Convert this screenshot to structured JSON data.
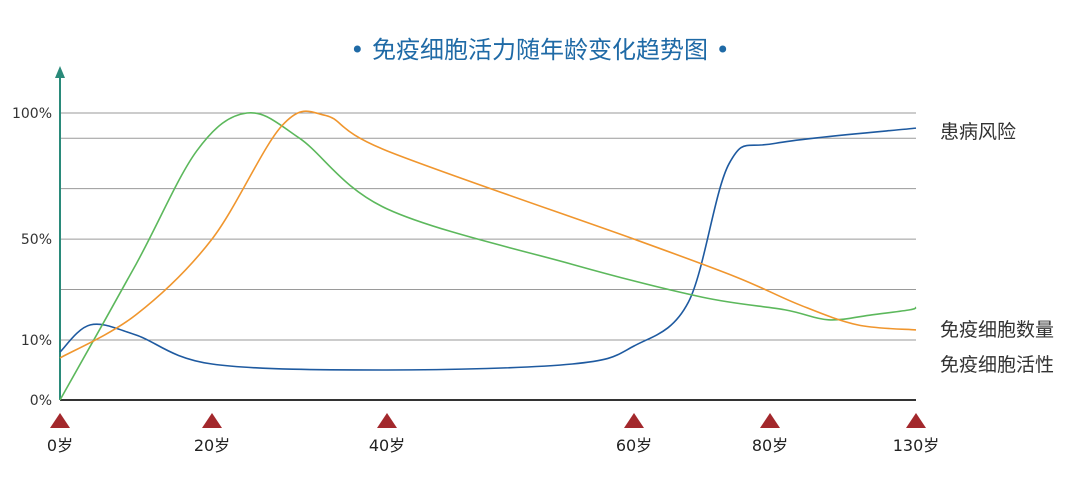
{
  "colors": {
    "title": "#1f6aa6",
    "axis_y": "#2a8a7a",
    "grid": "#9a9a9a",
    "baseline": "#333333",
    "marker": "#a3282c",
    "risk": "#1e5aa0",
    "count": "#5cb85c",
    "activity": "#f0962e"
  },
  "chart_data": {
    "type": "line",
    "title": "• 免疫细胞活力随年龄变化趋势图 •",
    "xlabel": "",
    "ylabel": "",
    "grid": true,
    "legend_position": "right",
    "x_categories": [
      "0岁",
      "20岁",
      "40岁",
      "60岁",
      "80岁",
      "130岁"
    ],
    "y_ticks": [
      {
        "label": "0%",
        "value": 0
      },
      {
        "label": "10%",
        "value": 10
      },
      {
        "label": "50%",
        "value": 50
      },
      {
        "label": "100%",
        "value": 100
      }
    ],
    "gridlines": [
      10,
      30,
      50,
      70,
      90,
      100
    ],
    "series": [
      {
        "name": "患病风险",
        "color_key": "risk",
        "points": [
          [
            0,
            8
          ],
          [
            4,
            16
          ],
          [
            10,
            12
          ],
          [
            20,
            6
          ],
          [
            40,
            5
          ],
          [
            55,
            6
          ],
          [
            60,
            9
          ],
          [
            68,
            25
          ],
          [
            74,
            80
          ],
          [
            82,
            88
          ],
          [
            130,
            94
          ]
        ]
      },
      {
        "name": "免疫细胞数量",
        "color_key": "count",
        "points": [
          [
            0,
            0
          ],
          [
            10,
            40
          ],
          [
            18,
            85
          ],
          [
            24,
            100
          ],
          [
            30,
            90
          ],
          [
            40,
            62
          ],
          [
            55,
            40
          ],
          [
            70,
            27
          ],
          [
            85,
            22
          ],
          [
            100,
            18
          ],
          [
            115,
            20
          ],
          [
            128,
            22
          ],
          [
            130,
            23
          ]
        ]
      },
      {
        "name": "免疫细胞活性",
        "color_key": "activity",
        "points": [
          [
            0,
            7
          ],
          [
            10,
            20
          ],
          [
            20,
            50
          ],
          [
            28,
            95
          ],
          [
            33,
            99
          ],
          [
            40,
            85
          ],
          [
            60,
            50
          ],
          [
            75,
            35
          ],
          [
            90,
            24
          ],
          [
            110,
            16
          ],
          [
            130,
            14
          ]
        ]
      }
    ]
  }
}
